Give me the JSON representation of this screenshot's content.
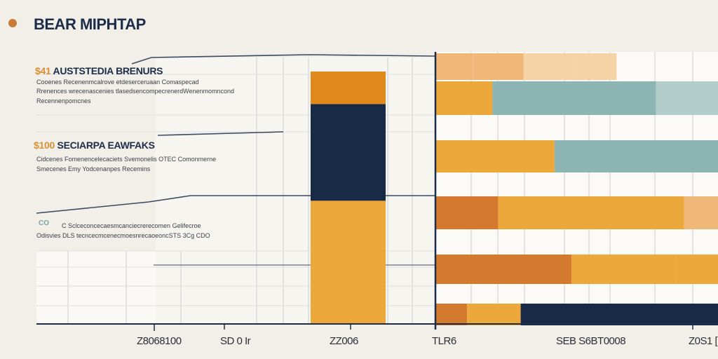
{
  "title": "BEAR MIPHTAP",
  "colors": {
    "orange": "#e08a1e",
    "navy": "#182a45",
    "amber": "#eda83c",
    "light_orange": "#f0b878",
    "peach": "#f5d3a6",
    "teal": "#8db5b4",
    "light_teal": "#b3cdca",
    "burnt": "#d37a2e",
    "grid": "#c9cdd2",
    "axis": "#1c2d4a"
  },
  "annotations": [
    {
      "heading_num": "$41",
      "heading_text": "AUSTSTEDIA BRENURS",
      "lines": [
        "Cooenes Recenenmcalrove etdeserceruaan Comaspecad",
        "Rrenences wrecenascenies tlasedsencompecrenerdWenenmomncond",
        "Recennenpomcnes"
      ]
    },
    {
      "heading_num": "$100",
      "heading_text": "SECIARPA EAWFAKS",
      "lines": [
        "Cidcenes Fomenencelecaciets Svemonelis OTEC Comonmerne",
        "Smecenes Emy Yodcenanpes Recemins"
      ]
    },
    {
      "tag": "CO",
      "lines": [
        "C Sclceconcecaesmcanciecrerecomen Gelifecroe",
        "Odisvies DLS tecncecmcenecmoesnrecaoeoncSTS 3Cg CDO"
      ]
    }
  ],
  "chart_data": [
    {
      "type": "bar",
      "title": "",
      "categories": [
        "ZZ006"
      ],
      "stacked": true,
      "ylim": [
        0,
        1
      ],
      "series": [
        {
          "values": [
            0.488
          ],
          "color": "amber"
        },
        {
          "values": [
            0.383
          ],
          "color": "navy"
        },
        {
          "values": [
            0.129
          ],
          "color": "orange"
        }
      ],
      "x_ticks": [
        "Z8068100",
        "SD 0 Ir",
        "ZZ006",
        "TLR6"
      ],
      "grid": true
    },
    {
      "type": "bar",
      "orientation": "horizontal",
      "title": "",
      "xlim": [
        0,
        1
      ],
      "rows": [
        {
          "segments": [
            {
              "value": 0.13,
              "color": "light_orange"
            },
            {
              "value": 0.18,
              "color": "light_orange"
            },
            {
              "value": 0.18,
              "color": "peach"
            },
            {
              "value": 0.15,
              "color": "peach"
            }
          ]
        },
        {
          "segments": [
            {
              "value": 0.2,
              "color": "amber"
            },
            {
              "value": 0.58,
              "color": "teal"
            },
            {
              "value": 0.22,
              "color": "light_teal"
            }
          ]
        },
        {
          "segments": [
            {
              "value": 0.42,
              "color": "amber"
            },
            {
              "value": 0.58,
              "color": "teal"
            }
          ]
        },
        {
          "segments": [
            {
              "value": 0.22,
              "color": "burnt"
            },
            {
              "value": 0.66,
              "color": "amber"
            },
            {
              "value": 0.12,
              "color": "light_orange"
            }
          ]
        },
        {
          "segments": [
            {
              "value": 0.48,
              "color": "burnt"
            },
            {
              "value": 0.37,
              "color": "amber"
            },
            {
              "value": 0.15,
              "color": "amber"
            }
          ]
        },
        {
          "segments": [
            {
              "value": 0.11,
              "color": "burnt"
            },
            {
              "value": 0.19,
              "color": "amber"
            },
            {
              "value": 0.7,
              "color": "navy"
            }
          ]
        }
      ],
      "x_ticks": [
        "SEB S6BT0008",
        "Z0S1 ["
      ],
      "grid": true
    }
  ]
}
